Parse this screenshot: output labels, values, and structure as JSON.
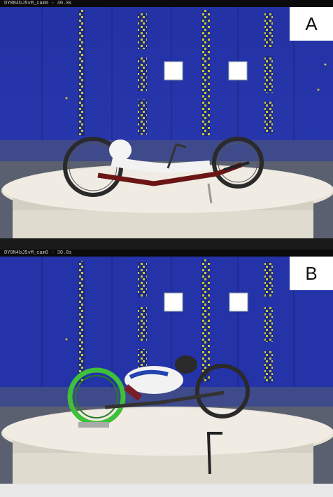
{
  "figure": {
    "panels": [
      {
        "label": "A",
        "caption": "DY0N4bJ5vM_cam0 - 40.0s",
        "scene": "upright recumbent handcycle on turntable in wind tunnel"
      },
      {
        "label": "B",
        "caption": "DY0N4bJ5vM_cam0 - 30.0s",
        "scene": "prone (kneeling) handcycle on turntable in wind tunnel"
      }
    ],
    "colors": {
      "tunnel_wall": "#2433a8",
      "floor": "#cfcfcf",
      "turntable": "#e8e2d6",
      "green_wheel": "#3fbf3a"
    }
  }
}
